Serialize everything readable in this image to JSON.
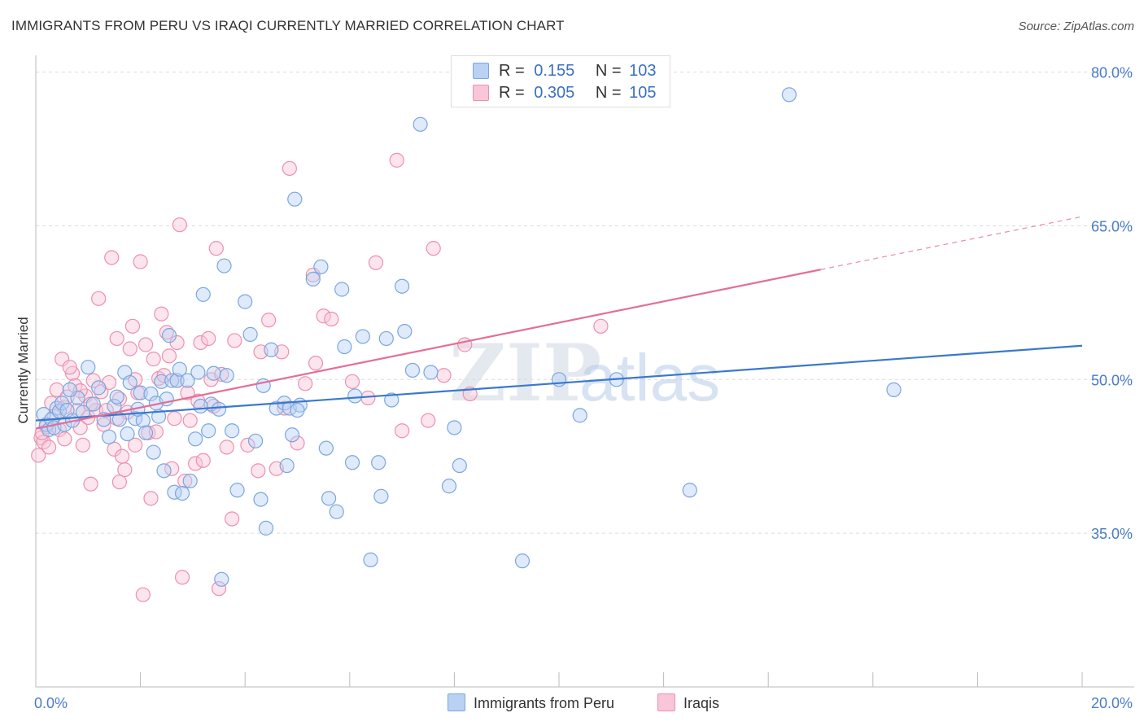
{
  "title": "IMMIGRANTS FROM PERU VS IRAQI CURRENTLY MARRIED CORRELATION CHART",
  "source": "Source: ZipAtlas.com",
  "watermark": {
    "part1": "ZIP",
    "part2": "atlas"
  },
  "legend": {
    "rows": [
      {
        "r_label": "R =",
        "r_value": "0.155",
        "n_label": "N =",
        "n_value": "103",
        "color": "#7aa6e0",
        "fill": "#b9d1f3"
      },
      {
        "r_label": "R =",
        "r_value": "0.305",
        "n_label": "N =",
        "n_value": "105",
        "color": "#ee8fae",
        "fill": "#f8c6d6"
      }
    ]
  },
  "bottom_legend": [
    {
      "label": "Immigrants from Peru",
      "fill": "#b9d1f3",
      "stroke": "#7aa6e0"
    },
    {
      "label": "Iraqis",
      "fill": "#f8c6d6",
      "stroke": "#ee8fae"
    }
  ],
  "chart_data": {
    "type": "scatter",
    "title": "IMMIGRANTS FROM PERU VS IRAQI CURRENTLY MARRIED CORRELATION CHART",
    "xlabel": "",
    "ylabel": "Currently Married",
    "xlim": [
      0.0,
      20.0
    ],
    "ylim": [
      20.0,
      81.0
    ],
    "x_tick_labels": [
      "0.0%",
      "20.0%"
    ],
    "y_ticks": [
      35.0,
      50.0,
      65.0,
      80.0
    ],
    "y_tick_labels": [
      "35.0%",
      "50.0%",
      "65.0%",
      "80.0%"
    ],
    "grid": true,
    "series": [
      {
        "name": "Immigrants from Peru",
        "color": "#3a78cf",
        "fill": "#b9d1f3",
        "stroke": "#7aa6e0",
        "trend": {
          "x0": 0.0,
          "y0": 46.0,
          "x1": 20.0,
          "y1": 53.3,
          "dashed_from": null
        },
        "points": [
          [
            0.15,
            46.6
          ],
          [
            0.2,
            45.6
          ],
          [
            0.25,
            45.1
          ],
          [
            0.3,
            46.1
          ],
          [
            0.35,
            45.3
          ],
          [
            0.4,
            47.2
          ],
          [
            0.45,
            46.9
          ],
          [
            0.5,
            47.7
          ],
          [
            0.55,
            45.6
          ],
          [
            0.6,
            47.0
          ],
          [
            0.7,
            46.0
          ],
          [
            0.8,
            48.2
          ],
          [
            0.9,
            46.8
          ],
          [
            1.0,
            51.2
          ],
          [
            1.1,
            47.6
          ],
          [
            1.2,
            49.2
          ],
          [
            1.3,
            46.1
          ],
          [
            1.4,
            44.4
          ],
          [
            1.5,
            47.4
          ],
          [
            1.55,
            48.3
          ],
          [
            1.6,
            46.1
          ],
          [
            1.7,
            50.7
          ],
          [
            1.75,
            44.7
          ],
          [
            1.8,
            49.7
          ],
          [
            1.9,
            46.2
          ],
          [
            2.0,
            48.7
          ],
          [
            2.05,
            46.0
          ],
          [
            2.1,
            44.8
          ],
          [
            2.2,
            48.6
          ],
          [
            2.25,
            42.9
          ],
          [
            2.3,
            47.7
          ],
          [
            2.4,
            49.8
          ],
          [
            2.45,
            41.1
          ],
          [
            2.5,
            48.1
          ],
          [
            2.55,
            54.3
          ],
          [
            2.6,
            49.9
          ],
          [
            2.65,
            39.0
          ],
          [
            2.7,
            49.9
          ],
          [
            2.75,
            51.0
          ],
          [
            2.8,
            38.9
          ],
          [
            2.9,
            49.9
          ],
          [
            2.95,
            40.1
          ],
          [
            3.1,
            50.7
          ],
          [
            3.05,
            44.2
          ],
          [
            3.2,
            58.3
          ],
          [
            3.3,
            45.0
          ],
          [
            3.35,
            47.6
          ],
          [
            3.4,
            50.6
          ],
          [
            3.5,
            47.1
          ],
          [
            3.6,
            61.1
          ],
          [
            3.65,
            50.4
          ],
          [
            3.75,
            45.0
          ],
          [
            3.85,
            39.2
          ],
          [
            4.1,
            54.4
          ],
          [
            4.0,
            57.6
          ],
          [
            4.2,
            44.0
          ],
          [
            4.3,
            38.3
          ],
          [
            4.4,
            35.5
          ],
          [
            4.35,
            49.4
          ],
          [
            4.5,
            52.9
          ],
          [
            4.6,
            47.2
          ],
          [
            4.75,
            47.7
          ],
          [
            4.8,
            41.6
          ],
          [
            4.85,
            47.2
          ],
          [
            4.9,
            44.6
          ],
          [
            4.95,
            67.6
          ],
          [
            5.05,
            47.5
          ],
          [
            5.3,
            59.8
          ],
          [
            5.45,
            61.0
          ],
          [
            5.55,
            43.3
          ],
          [
            5.6,
            38.4
          ],
          [
            5.75,
            37.1
          ],
          [
            5.85,
            58.8
          ],
          [
            5.9,
            53.2
          ],
          [
            6.05,
            41.9
          ],
          [
            6.1,
            48.4
          ],
          [
            6.25,
            54.2
          ],
          [
            6.4,
            32.4
          ],
          [
            6.55,
            41.9
          ],
          [
            6.6,
            38.6
          ],
          [
            6.7,
            54.0
          ],
          [
            6.8,
            48.0
          ],
          [
            7.0,
            59.1
          ],
          [
            7.05,
            54.7
          ],
          [
            7.2,
            50.9
          ],
          [
            7.35,
            74.9
          ],
          [
            7.55,
            50.7
          ],
          [
            7.9,
            39.6
          ],
          [
            8.0,
            45.3
          ],
          [
            8.1,
            41.6
          ],
          [
            9.3,
            32.3
          ],
          [
            10.0,
            50.0
          ],
          [
            10.4,
            46.5
          ],
          [
            11.1,
            50.0
          ],
          [
            12.5,
            39.2
          ],
          [
            14.4,
            77.8
          ],
          [
            16.4,
            49.0
          ],
          [
            3.55,
            30.5
          ],
          [
            5.0,
            47.0
          ],
          [
            1.95,
            47.1
          ],
          [
            0.65,
            49.0
          ],
          [
            2.35,
            46.4
          ],
          [
            3.15,
            47.4
          ]
        ]
      },
      {
        "name": "Iraqis",
        "color": "#e46e97",
        "fill": "#f8c6d6",
        "stroke": "#ee8fae",
        "trend": {
          "x0": 0.0,
          "y0": 45.2,
          "x1": 20.0,
          "y1": 65.9,
          "dashed_from": 15.0
        },
        "points": [
          [
            0.05,
            42.6
          ],
          [
            0.1,
            44.3
          ],
          [
            0.15,
            43.9
          ],
          [
            0.2,
            45.4
          ],
          [
            0.25,
            43.4
          ],
          [
            0.3,
            47.7
          ],
          [
            0.35,
            46.4
          ],
          [
            0.4,
            49.0
          ],
          [
            0.45,
            45.1
          ],
          [
            0.5,
            52.0
          ],
          [
            0.55,
            47.3
          ],
          [
            0.6,
            48.3
          ],
          [
            0.7,
            50.6
          ],
          [
            0.75,
            49.4
          ],
          [
            0.8,
            47.0
          ],
          [
            0.85,
            45.3
          ],
          [
            0.9,
            43.6
          ],
          [
            0.95,
            48.4
          ],
          [
            1.0,
            46.3
          ],
          [
            1.05,
            39.8
          ],
          [
            1.1,
            49.9
          ],
          [
            1.15,
            47.0
          ],
          [
            1.2,
            57.9
          ],
          [
            1.25,
            48.8
          ],
          [
            1.3,
            45.6
          ],
          [
            1.35,
            47.0
          ],
          [
            1.4,
            49.7
          ],
          [
            1.45,
            61.9
          ],
          [
            1.5,
            43.2
          ],
          [
            1.55,
            54.0
          ],
          [
            1.6,
            40.0
          ],
          [
            1.65,
            42.5
          ],
          [
            1.7,
            41.2
          ],
          [
            1.75,
            46.8
          ],
          [
            1.8,
            53.0
          ],
          [
            1.85,
            55.2
          ],
          [
            1.9,
            50.0
          ],
          [
            1.95,
            48.7
          ],
          [
            2.0,
            61.5
          ],
          [
            2.05,
            29.0
          ],
          [
            2.1,
            53.4
          ],
          [
            2.15,
            44.8
          ],
          [
            2.2,
            38.4
          ],
          [
            2.25,
            52.0
          ],
          [
            2.35,
            50.1
          ],
          [
            2.4,
            56.4
          ],
          [
            2.45,
            50.4
          ],
          [
            2.5,
            54.6
          ],
          [
            2.55,
            52.3
          ],
          [
            2.6,
            41.3
          ],
          [
            2.65,
            46.2
          ],
          [
            2.7,
            53.6
          ],
          [
            2.75,
            65.1
          ],
          [
            2.8,
            30.7
          ],
          [
            2.85,
            40.1
          ],
          [
            2.9,
            48.7
          ],
          [
            2.95,
            46.0
          ],
          [
            3.05,
            41.8
          ],
          [
            3.1,
            47.9
          ],
          [
            3.15,
            53.6
          ],
          [
            3.3,
            54.0
          ],
          [
            3.35,
            50.0
          ],
          [
            3.45,
            62.8
          ],
          [
            3.5,
            29.6
          ],
          [
            3.55,
            50.5
          ],
          [
            3.65,
            43.4
          ],
          [
            3.75,
            36.4
          ],
          [
            3.8,
            53.8
          ],
          [
            4.05,
            43.6
          ],
          [
            4.25,
            41.1
          ],
          [
            4.3,
            52.7
          ],
          [
            4.45,
            55.8
          ],
          [
            4.7,
            52.7
          ],
          [
            4.75,
            47.2
          ],
          [
            4.85,
            70.6
          ],
          [
            5.0,
            43.8
          ],
          [
            5.15,
            49.6
          ],
          [
            5.3,
            60.2
          ],
          [
            5.35,
            51.6
          ],
          [
            5.5,
            56.2
          ],
          [
            5.65,
            55.9
          ],
          [
            6.05,
            49.8
          ],
          [
            6.35,
            48.2
          ],
          [
            6.5,
            61.4
          ],
          [
            6.9,
            71.4
          ],
          [
            7.0,
            45.0
          ],
          [
            7.5,
            46.0
          ],
          [
            7.6,
            62.8
          ],
          [
            7.8,
            50.4
          ],
          [
            8.2,
            53.4
          ],
          [
            8.3,
            48.6
          ],
          [
            10.8,
            55.2
          ],
          [
            0.12,
            44.8
          ],
          [
            0.65,
            51.2
          ],
          [
            1.6,
            48.1
          ],
          [
            2.3,
            44.9
          ],
          [
            3.4,
            47.4
          ],
          [
            4.6,
            41.3
          ],
          [
            1.05,
            47.6
          ],
          [
            1.9,
            43.6
          ],
          [
            0.85,
            48.9
          ],
          [
            2.7,
            49.9
          ],
          [
            1.55,
            46.2
          ],
          [
            3.2,
            42.1
          ],
          [
            0.55,
            44.2
          ]
        ]
      }
    ]
  }
}
